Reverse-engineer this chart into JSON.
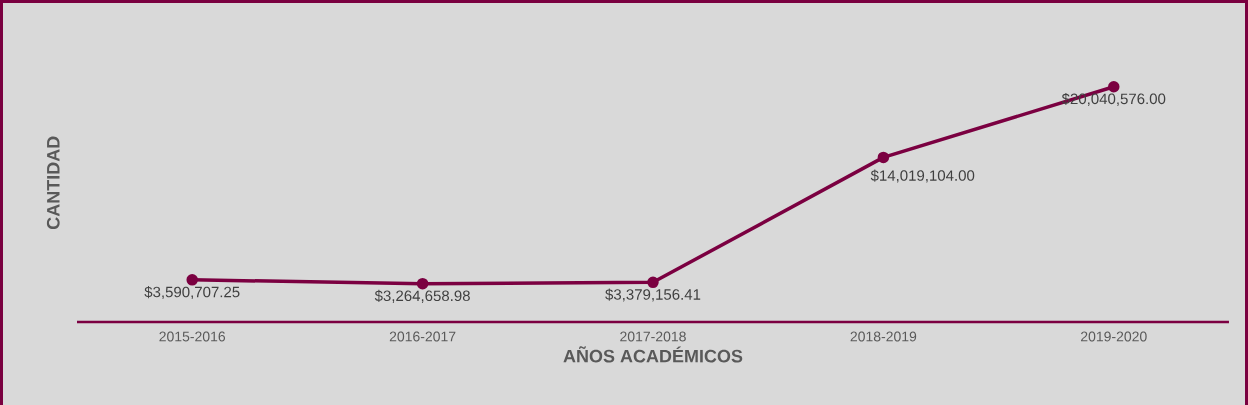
{
  "chart_data": {
    "type": "line",
    "xlabel": "AÑOS ACADÉMICOS",
    "ylabel": "CANTIDAD",
    "categories": [
      "2015-2016",
      "2016-2017",
      "2017-2018",
      "2018-2019",
      "2019-2020"
    ],
    "values": [
      3590707.25,
      3264658.98,
      3379156.41,
      14019104.0,
      20040576.0
    ],
    "value_labels": [
      "$3,590,707.25",
      "$3,264,658.98",
      "$3,379,156.41",
      "$14,019,104.00",
      "$20,040,576.00"
    ],
    "color": "#7b0041",
    "marker": "circle",
    "line_style": "solid",
    "tick_labels": "x",
    "grid": false
  }
}
